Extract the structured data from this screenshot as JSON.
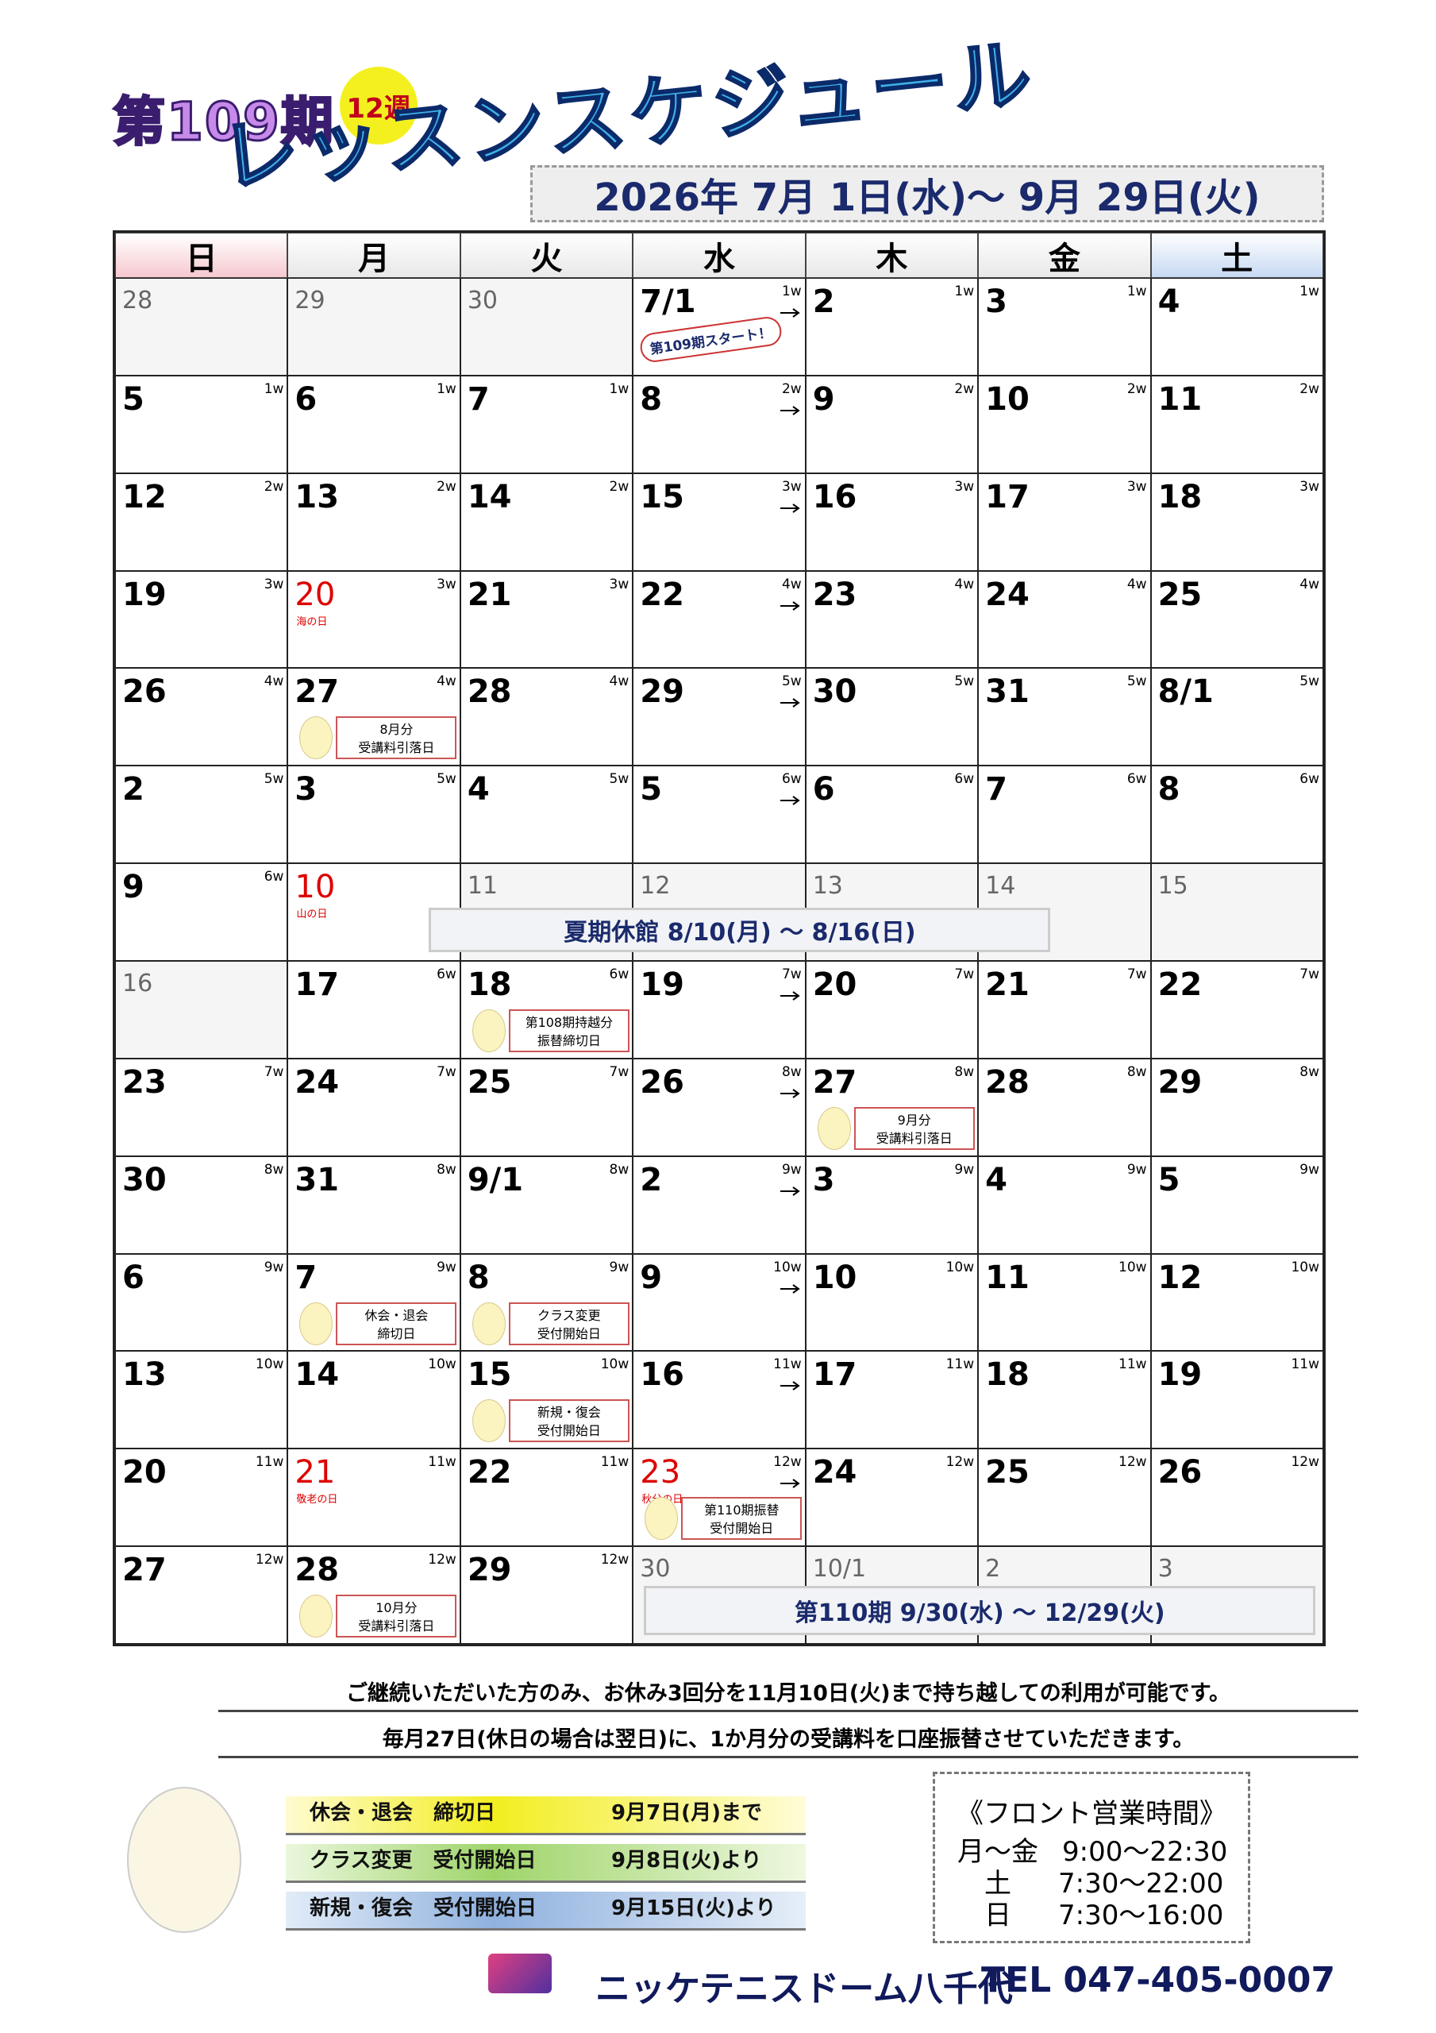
{
  "header": {
    "term": "第109期",
    "weeks": "12週",
    "title": "レッスンスケジュール",
    "period": "2026年 7月 1日(水)～ 9月 29日(火)"
  },
  "calendar": {
    "weekdays": [
      "日",
      "月",
      "火",
      "水",
      "木",
      "金",
      "土"
    ],
    "weeks": [
      {
        "days": [
          {
            "day": "28",
            "closed": true
          },
          {
            "day": "29",
            "closed": true
          },
          {
            "day": "30",
            "closed": true
          },
          {
            "day": "7/1",
            "week": "1w",
            "arrow": true,
            "badge": "第109期スタート！"
          },
          {
            "day": "2",
            "week": "1w"
          },
          {
            "day": "3",
            "week": "1w"
          },
          {
            "day": "4",
            "week": "1w"
          }
        ]
      },
      {
        "days": [
          {
            "day": "5",
            "week": "1w"
          },
          {
            "day": "6",
            "week": "1w"
          },
          {
            "day": "7",
            "week": "1w"
          },
          {
            "day": "8",
            "week": "2w",
            "arrow": true
          },
          {
            "day": "9",
            "week": "2w"
          },
          {
            "day": "10",
            "week": "2w"
          },
          {
            "day": "11",
            "week": "2w"
          }
        ]
      },
      {
        "days": [
          {
            "day": "12",
            "week": "2w"
          },
          {
            "day": "13",
            "week": "2w"
          },
          {
            "day": "14",
            "week": "2w"
          },
          {
            "day": "15",
            "week": "3w",
            "arrow": true
          },
          {
            "day": "16",
            "week": "3w"
          },
          {
            "day": "17",
            "week": "3w"
          },
          {
            "day": "18",
            "week": "3w"
          }
        ]
      },
      {
        "days": [
          {
            "day": "19",
            "week": "3w"
          },
          {
            "day": "20",
            "week": "3w",
            "holiday": "海の日"
          },
          {
            "day": "21",
            "week": "3w"
          },
          {
            "day": "22",
            "week": "4w",
            "arrow": true
          },
          {
            "day": "23",
            "week": "4w"
          },
          {
            "day": "24",
            "week": "4w"
          },
          {
            "day": "25",
            "week": "4w"
          }
        ]
      },
      {
        "days": [
          {
            "day": "26",
            "week": "4w"
          },
          {
            "day": "27",
            "week": "4w",
            "note": [
              "8月分",
              "受講料引落日"
            ]
          },
          {
            "day": "28",
            "week": "4w"
          },
          {
            "day": "29",
            "week": "5w",
            "arrow": true
          },
          {
            "day": "30",
            "week": "5w"
          },
          {
            "day": "31",
            "week": "5w"
          },
          {
            "day": "8/1",
            "week": "5w"
          }
        ]
      },
      {
        "days": [
          {
            "day": "2",
            "week": "5w"
          },
          {
            "day": "3",
            "week": "5w"
          },
          {
            "day": "4",
            "week": "5w"
          },
          {
            "day": "5",
            "week": "6w",
            "arrow": true
          },
          {
            "day": "6",
            "week": "6w"
          },
          {
            "day": "7",
            "week": "6w"
          },
          {
            "day": "8",
            "week": "6w"
          }
        ]
      },
      {
        "days": [
          {
            "day": "9",
            "week": "6w"
          },
          {
            "day": "10",
            "holiday": "山の日"
          },
          {
            "day": "11",
            "closed": true
          },
          {
            "day": "12",
            "closed": true
          },
          {
            "day": "13",
            "closed": true
          },
          {
            "day": "14",
            "closed": true
          },
          {
            "day": "15",
            "closed": true
          }
        ],
        "banner": "夏期休館 8/10(月) ～ 8/16(日)"
      },
      {
        "days": [
          {
            "day": "16",
            "closed": true
          },
          {
            "day": "17",
            "week": "6w"
          },
          {
            "day": "18",
            "week": "6w",
            "note": [
              "第108期持越分",
              "振替締切日"
            ]
          },
          {
            "day": "19",
            "week": "7w",
            "arrow": true
          },
          {
            "day": "20",
            "week": "7w"
          },
          {
            "day": "21",
            "week": "7w"
          },
          {
            "day": "22",
            "week": "7w"
          }
        ]
      },
      {
        "days": [
          {
            "day": "23",
            "week": "7w"
          },
          {
            "day": "24",
            "week": "7w"
          },
          {
            "day": "25",
            "week": "7w"
          },
          {
            "day": "26",
            "week": "8w",
            "arrow": true
          },
          {
            "day": "27",
            "week": "8w",
            "note": [
              "9月分",
              "受講料引落日"
            ]
          },
          {
            "day": "28",
            "week": "8w"
          },
          {
            "day": "29",
            "week": "8w"
          }
        ]
      },
      {
        "days": [
          {
            "day": "30",
            "week": "8w"
          },
          {
            "day": "31",
            "week": "8w"
          },
          {
            "day": "9/1",
            "week": "8w"
          },
          {
            "day": "2",
            "week": "9w",
            "arrow": true
          },
          {
            "day": "3",
            "week": "9w"
          },
          {
            "day": "4",
            "week": "9w"
          },
          {
            "day": "5",
            "week": "9w"
          }
        ]
      },
      {
        "days": [
          {
            "day": "6",
            "week": "9w"
          },
          {
            "day": "7",
            "week": "9w",
            "note": [
              "休会・退会",
              "締切日"
            ]
          },
          {
            "day": "8",
            "week": "9w",
            "note": [
              "クラス変更",
              "受付開始日"
            ]
          },
          {
            "day": "9",
            "week": "10w",
            "arrow": true
          },
          {
            "day": "10",
            "week": "10w"
          },
          {
            "day": "11",
            "week": "10w"
          },
          {
            "day": "12",
            "week": "10w"
          }
        ]
      },
      {
        "days": [
          {
            "day": "13",
            "week": "10w"
          },
          {
            "day": "14",
            "week": "10w"
          },
          {
            "day": "15",
            "week": "10w",
            "note": [
              "新規・復会",
              "受付開始日"
            ]
          },
          {
            "day": "16",
            "week": "11w",
            "arrow": true
          },
          {
            "day": "17",
            "week": "11w"
          },
          {
            "day": "18",
            "week": "11w"
          },
          {
            "day": "19",
            "week": "11w"
          }
        ]
      },
      {
        "days": [
          {
            "day": "20",
            "week": "11w"
          },
          {
            "day": "21",
            "week": "11w",
            "holiday": "敬老の日"
          },
          {
            "day": "22",
            "week": "11w"
          },
          {
            "day": "23",
            "week": "12w",
            "arrow": true,
            "holiday": "秋分の日",
            "note": [
              "第110期振替",
              "受付開始日"
            ]
          },
          {
            "day": "24",
            "week": "12w"
          },
          {
            "day": "25",
            "week": "12w"
          },
          {
            "day": "26",
            "week": "12w"
          }
        ]
      },
      {
        "days": [
          {
            "day": "27",
            "week": "12w"
          },
          {
            "day": "28",
            "week": "12w",
            "note": [
              "10月分",
              "受講料引落日"
            ]
          },
          {
            "day": "29",
            "week": "12w"
          },
          {
            "day": "30",
            "closed": true
          },
          {
            "day": "10/1",
            "closed": true
          },
          {
            "day": "2",
            "closed": true
          },
          {
            "day": "3",
            "closed": true
          }
        ],
        "banner": "第110期 9/30(水) ～ 12/29(火)"
      }
    ]
  },
  "notes": [
    "ご継続いただいた方のみ、お休み3回分を11月10日(火)まで持ち越しての利用が可能です。",
    "毎月27日(休日の場合は翌日)に、1か月分の受講料を口座振替させていただきます。"
  ],
  "deadlines": [
    {
      "label": "休会・退会　締切日",
      "date": "9月7日(月)まで"
    },
    {
      "label": "クラス変更　受付開始日",
      "date": "9月8日(火)より"
    },
    {
      "label": "新規・復会　受付開始日",
      "date": "9月15日(火)より"
    }
  ],
  "hours": {
    "title": "《フロント営業時間》",
    "rows": [
      [
        "月～金",
        "9:00～22:30"
      ],
      [
        "土",
        "7:30～22:00"
      ],
      [
        "日",
        "7:30～16:00"
      ]
    ]
  },
  "footer": {
    "name": "ニッケテニスドーム八千代",
    "tel": "TEL 047-405-0007"
  }
}
